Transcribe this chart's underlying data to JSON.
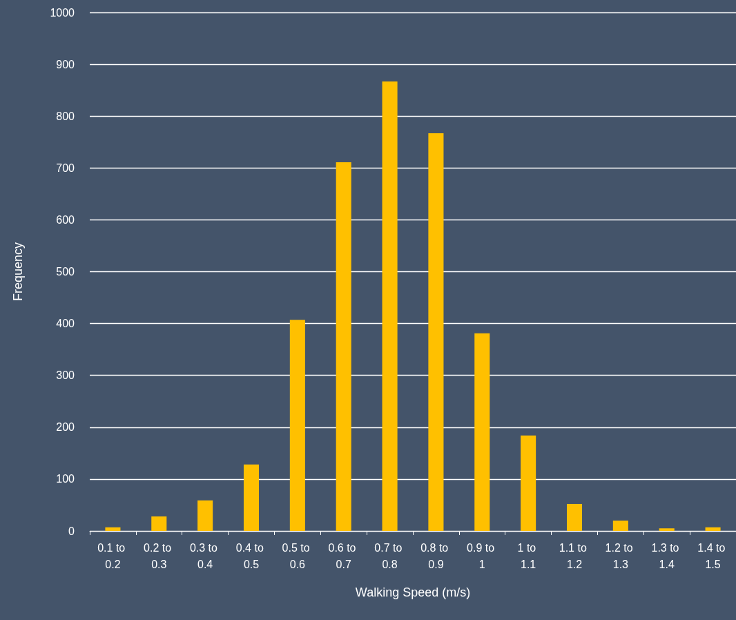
{
  "chart_data": {
    "type": "bar",
    "xlabel": "Walking Speed (m/s)",
    "ylabel": "Frequency",
    "categories": [
      "0.1 to 0.2",
      "0.2 to 0.3",
      "0.3 to 0.4",
      "0.4 to 0.5",
      "0.5 to 0.6",
      "0.6 to 0.7",
      "0.7 to 0.8",
      "0.8 to 0.9",
      "0.9 to 1",
      "1 to 1.1",
      "1.1 to 1.2",
      "1.2 to 1.3",
      "1.3 to 1.4",
      "1.4 to 1.5"
    ],
    "values": [
      7,
      28,
      59,
      128,
      407,
      711,
      867,
      767,
      381,
      184,
      52,
      20,
      5,
      7
    ],
    "color": "#ffc000",
    "ylim": [
      0,
      1000
    ],
    "yticks": [
      0,
      100,
      200,
      300,
      400,
      500,
      600,
      700,
      800,
      900,
      1000
    ],
    "grid": "y"
  }
}
